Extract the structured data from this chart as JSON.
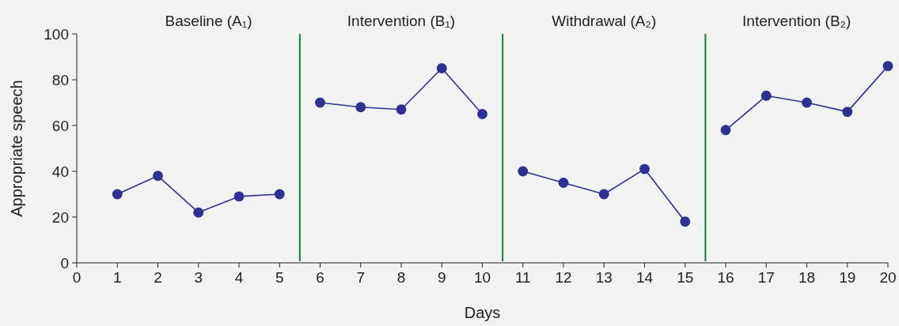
{
  "chart_data": {
    "type": "line",
    "xlabel": "Days",
    "ylabel": "Appropriate speech",
    "xlim": [
      0,
      20
    ],
    "ylim": [
      0,
      100
    ],
    "xticks": [
      0,
      1,
      2,
      3,
      4,
      5,
      6,
      7,
      8,
      9,
      10,
      11,
      12,
      13,
      14,
      15,
      16,
      17,
      18,
      19,
      20
    ],
    "yticks": [
      0,
      20,
      40,
      60,
      80,
      100
    ],
    "marker": "circle",
    "grid": false,
    "series": [
      {
        "color": "#2e3192",
        "x": [
          1,
          2,
          3,
          4,
          5
        ],
        "values": [
          30,
          38,
          22,
          29,
          30
        ]
      },
      {
        "color": "#2e3192",
        "x": [
          6,
          7,
          8,
          9,
          10
        ],
        "values": [
          70,
          68,
          67,
          85,
          65
        ]
      },
      {
        "color": "#2e3192",
        "x": [
          11,
          12,
          13,
          14,
          15
        ],
        "values": [
          40,
          35,
          30,
          41,
          18
        ]
      },
      {
        "color": "#2e3192",
        "x": [
          16,
          17,
          18,
          19,
          20
        ],
        "values": [
          58,
          73,
          70,
          66,
          86
        ]
      }
    ],
    "ref_lines": [
      {
        "axis": "x",
        "value": 5.5,
        "color": "#1e7b3c"
      },
      {
        "axis": "x",
        "value": 10.5,
        "color": "#1e7b3c"
      },
      {
        "axis": "x",
        "value": 15.5,
        "color": "#1e7b3c"
      }
    ],
    "annotations": [
      "Baseline (A₁)",
      "Intervention (B₁)",
      "Withdrawal (A₂)",
      "Intervention (B₂)"
    ]
  }
}
